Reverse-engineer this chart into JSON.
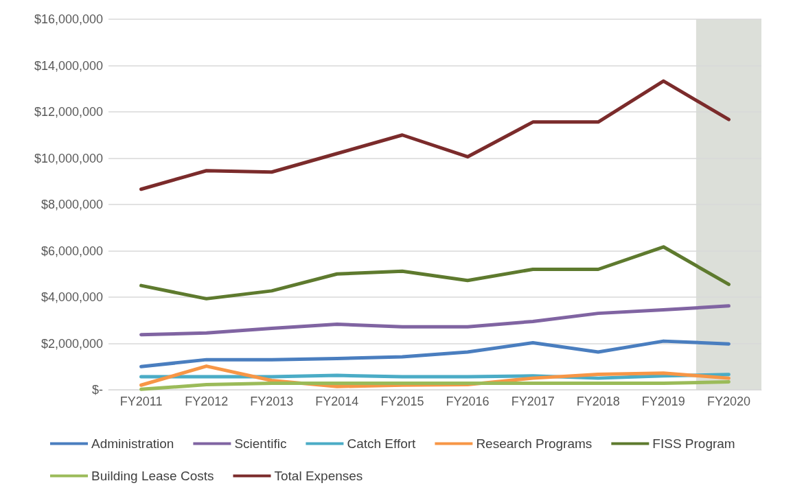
{
  "chart_data": {
    "type": "line",
    "categories": [
      "FY2011",
      "FY2012",
      "FY2013",
      "FY2014",
      "FY2015",
      "FY2016",
      "FY2017",
      "FY2018",
      "FY2019",
      "FY2020"
    ],
    "series": [
      {
        "name": "Administration",
        "color": "#4a7ebf",
        "values": [
          1000000,
          1300000,
          1300000,
          1350000,
          1420000,
          1630000,
          2030000,
          1630000,
          2100000,
          1980000
        ]
      },
      {
        "name": "Scientific",
        "color": "#8064a2",
        "values": [
          2380000,
          2450000,
          2650000,
          2830000,
          2720000,
          2720000,
          2950000,
          3300000,
          3450000,
          3620000
        ]
      },
      {
        "name": "Catch Effort",
        "color": "#4bacc6",
        "values": [
          560000,
          560000,
          560000,
          620000,
          560000,
          560000,
          600000,
          500000,
          600000,
          660000
        ]
      },
      {
        "name": "Research Programs",
        "color": "#f79646",
        "values": [
          200000,
          1020000,
          400000,
          140000,
          200000,
          220000,
          500000,
          670000,
          720000,
          500000
        ]
      },
      {
        "name": "FISS Program",
        "color": "#5e7a2e",
        "values": [
          4500000,
          3930000,
          4270000,
          5000000,
          5120000,
          4720000,
          5200000,
          5200000,
          6170000,
          4550000
        ]
      },
      {
        "name": "Building Lease Costs",
        "color": "#9bbb59",
        "values": [
          20000,
          220000,
          280000,
          280000,
          280000,
          280000,
          280000,
          280000,
          280000,
          340000
        ]
      },
      {
        "name": "Total Expenses",
        "color": "#7b2b2b",
        "values": [
          8660000,
          9460000,
          9400000,
          10200000,
          11000000,
          10060000,
          11560000,
          11560000,
          13330000,
          11670000
        ]
      }
    ],
    "ylim": [
      0,
      16000000
    ],
    "yticks": [
      {
        "value": 0,
        "label": "$-"
      },
      {
        "value": 2000000,
        "label": "$2,000,000"
      },
      {
        "value": 4000000,
        "label": "$4,000,000"
      },
      {
        "value": 6000000,
        "label": "$6,000,000"
      },
      {
        "value": 8000000,
        "label": "$8,000,000"
      },
      {
        "value": 10000000,
        "label": "$10,000,000"
      },
      {
        "value": 12000000,
        "label": "$12,000,000"
      },
      {
        "value": 14000000,
        "label": "$14,000,000"
      },
      {
        "value": 16000000,
        "label": "$16,000,000"
      }
    ],
    "bands": [
      {
        "axis": "x",
        "from": "FY2020",
        "to": "FY2020",
        "color": "#dcdfd9"
      }
    ],
    "grid": "y",
    "legend": "bottom",
    "marker": "none",
    "line_style": "solid"
  }
}
